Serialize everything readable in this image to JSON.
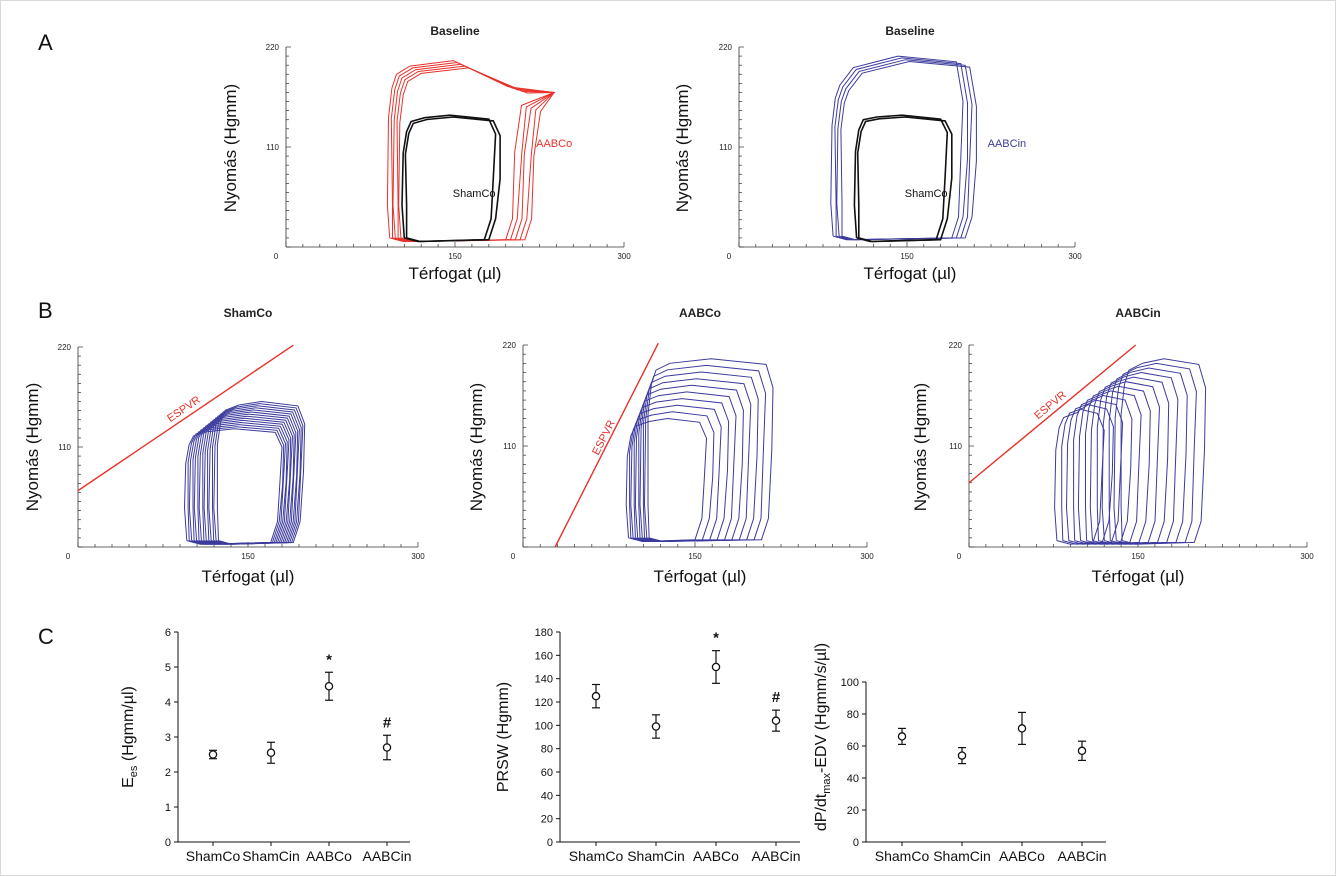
{
  "panels": {
    "A": {
      "letter": "A",
      "plots": [
        {
          "title": "Baseline",
          "xlabel": "Térfogat (µl)",
          "ylabel": "Nyomás (Hgmm)",
          "xticks": [
            "0",
            "150",
            "300"
          ],
          "yticks": [
            "220",
            "110"
          ],
          "xlim": [
            0,
            300
          ],
          "ylim": [
            0,
            220
          ],
          "series": [
            {
              "label": "AABCo",
              "color": "#e8322b",
              "label_color": "#e8322b",
              "label_at": [
                222,
                110
              ],
              "loops": 5,
              "edv": [
                205,
                222
              ],
              "esv": [
                92,
                102
              ],
              "peak": 205,
              "plateau": 190,
              "edp": 6,
              "bump": [
                238,
                170
              ]
            },
            {
              "label": "ShamCo",
              "color": "#111111",
              "label_color": "#111111",
              "label_at": [
                148,
                55
              ],
              "loops": 2,
              "edv": [
                186,
                190
              ],
              "esv": [
                105,
                107
              ],
              "peak": 145,
              "plateau": 138,
              "edp": 6
            }
          ]
        },
        {
          "title": "Baseline",
          "xlabel": "Térfogat (µl)",
          "ylabel": "Nyomás (Hgmm)",
          "xticks": [
            "0",
            "150",
            "300"
          ],
          "yticks": [
            "220",
            "110"
          ],
          "xlim": [
            0,
            300
          ],
          "ylim": [
            0,
            220
          ],
          "series": [
            {
              "label": "AABCin",
              "color": "#3b3b9e",
              "label_color": "#3b3b9e",
              "label_at": [
                222,
                110
              ],
              "loops": 4,
              "edv": [
                200,
                212
              ],
              "esv": [
                84,
                92
              ],
              "peak": 210,
              "plateau": 178,
              "edp": 8
            },
            {
              "label": "ShamCo",
              "color": "#111111",
              "label_color": "#111111",
              "label_at": [
                148,
                55
              ],
              "loops": 2,
              "edv": [
                186,
                190
              ],
              "esv": [
                105,
                107
              ],
              "peak": 145,
              "plateau": 140,
              "edp": 6
            }
          ]
        }
      ]
    },
    "B": {
      "letter": "B",
      "plots": [
        {
          "title": "ShamCo",
          "xlabel": "Térfogat (µl)",
          "ylabel": "Nyomás (Hgmm)",
          "xticks": [
            "0",
            "150",
            "300"
          ],
          "yticks": [
            "220",
            "110"
          ],
          "xlim": [
            0,
            300
          ],
          "ylim": [
            0,
            220
          ],
          "espvr": {
            "label": "ESPVR",
            "color": "#e8322b",
            "x": [
              0,
              190
            ],
            "y": [
              62,
              222
            ]
          },
          "loops": {
            "count": 14,
            "color": "#3b3b9e",
            "esv": [
              96,
              124
            ],
            "edv": [
              180,
              200
            ],
            "peak": [
              130,
              160
            ],
            "edp": 3
          }
        },
        {
          "title": "AABCo",
          "xlabel": "Térfogat (µl)",
          "ylabel": "Nyomás (Hgmm)",
          "xticks": [
            "0",
            "150",
            "300"
          ],
          "yticks": [
            "220",
            "110"
          ],
          "xlim": [
            0,
            300
          ],
          "ylim": [
            0,
            220
          ],
          "espvr": {
            "label": "ESPVR",
            "color": "#e8322b",
            "x": [
              28,
              118
            ],
            "y": [
              0,
              222
            ]
          },
          "loops": {
            "count": 10,
            "color": "#3b3b9e",
            "esv": [
              92,
              110
            ],
            "edv": [
              160,
              218
            ],
            "peak": [
              140,
              205
            ],
            "edp": 6
          }
        },
        {
          "title": "AABCin",
          "xlabel": "Térfogat (µl)",
          "ylabel": "Nyomás (Hgmm)",
          "xticks": [
            "0",
            "150",
            "300"
          ],
          "yticks": [
            "220",
            "110"
          ],
          "xlim": [
            0,
            300
          ],
          "ylim": [
            0,
            220
          ],
          "espvr": {
            "label": "ESPVR",
            "color": "#e8322b",
            "x": [
              0,
              148
            ],
            "y": [
              70,
              220
            ]
          },
          "loops": {
            "count": 12,
            "color": "#3b3b9e",
            "esv": [
              78,
              136
            ],
            "edv": [
              120,
              210
            ],
            "peak": [
              150,
              205
            ],
            "edp": 3
          }
        }
      ]
    },
    "C": {
      "letter": "C"
    }
  },
  "chart_data": [
    {
      "type": "scatter",
      "title": "",
      "categories": [
        "ShamCo",
        "ShamCin",
        "AABCo",
        "AABCin"
      ],
      "ylabel_main": "E",
      "ylabel_sub": "es",
      "ylabel_rest": " (Hgmm/µl)",
      "ylim": [
        0,
        6
      ],
      "yticks": [
        "0",
        "1",
        "2",
        "3",
        "4",
        "5",
        "6"
      ],
      "values": [
        2.5,
        2.55,
        4.45,
        2.7
      ],
      "errors": [
        0.12,
        0.3,
        0.4,
        0.35
      ],
      "marks": [
        "",
        "",
        "*",
        "#"
      ]
    },
    {
      "type": "scatter",
      "title": "",
      "categories": [
        "ShamCo",
        "ShamCin",
        "AABCo",
        "AABCin"
      ],
      "ylabel_main": "PRSW (Hgmm)",
      "ylabel_sub": "",
      "ylabel_rest": "",
      "ylim": [
        0,
        180
      ],
      "yticks": [
        "0",
        "20",
        "40",
        "60",
        "80",
        "100",
        "120",
        "140",
        "160",
        "180"
      ],
      "values": [
        125,
        99,
        150,
        104
      ],
      "errors": [
        10,
        10,
        14,
        9
      ],
      "marks": [
        "",
        "",
        "*",
        "#"
      ]
    },
    {
      "type": "scatter",
      "title": "",
      "categories": [
        "ShamCo",
        "ShamCin",
        "AABCo",
        "AABCin"
      ],
      "ylabel_main": "dP/dt",
      "ylabel_sub": "max",
      "ylabel_rest": "-EDV (Hgmm/s/µl)",
      "ylim": [
        0,
        100
      ],
      "yticks": [
        "0",
        "20",
        "40",
        "60",
        "80",
        "100"
      ],
      "values": [
        66,
        54,
        71,
        57
      ],
      "errors": [
        5,
        5,
        10,
        6
      ],
      "marks": [
        "",
        "",
        "",
        ""
      ]
    }
  ]
}
